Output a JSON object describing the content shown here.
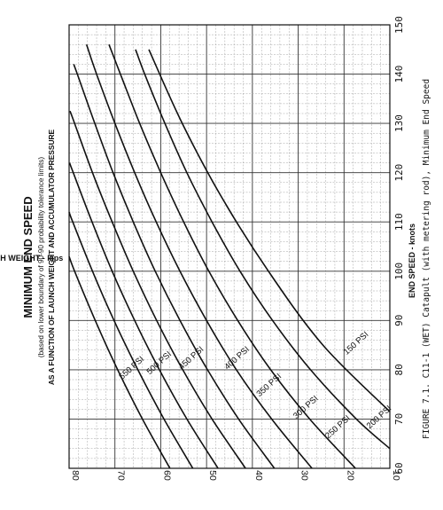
{
  "chart_data": {
    "type": "line",
    "title": "MINIMUM END SPEED",
    "subtitle_line1": "(based on lower boundary of 90-90 probability tolerance limits)",
    "subtitle_line2": "AS A FUNCTION OF LAUNCH WEIGHT AND ACCUMULATOR PRESSURE",
    "xlabel": "END SPEED - knots",
    "ylabel": "LAUNCH WEIGHT - kips",
    "caption": "FIGURE 7.1. C11-1 (WET) Catapult (with metering rod), Minimum End Speed",
    "xlim": [
      60,
      150
    ],
    "ylim": [
      10,
      80
    ],
    "x_ticks": [
      "60",
      "70",
      "80",
      "90",
      "100",
      "110",
      "120",
      "130",
      "140",
      "150"
    ],
    "y_ticks": [
      "80",
      "70",
      "60",
      "50",
      "40",
      "30",
      "20",
      "10"
    ],
    "grid": true,
    "orientation": "rotated 90° counter-clockwise on the page",
    "series": [
      {
        "name": "150 PSI",
        "points": [
          [
            71.5,
            10
          ],
          [
            85,
            24.6
          ],
          [
            100,
            36.5
          ],
          [
            115,
            46.7
          ],
          [
            130,
            55.3
          ],
          [
            145,
            62.6
          ]
        ]
      },
      {
        "name": "200 PSI",
        "points": [
          [
            64,
            10
          ],
          [
            70,
            17.3
          ],
          [
            80,
            27.3
          ],
          [
            90,
            35.6
          ],
          [
            100,
            42.7
          ],
          [
            110,
            48.8
          ],
          [
            120,
            54.3
          ],
          [
            130,
            59.1
          ],
          [
            140,
            63.5
          ],
          [
            145,
            65.5
          ]
        ]
      },
      {
        "name": "250 PSI",
        "points": [
          [
            60,
            17.5
          ],
          [
            70,
            27.5
          ],
          [
            80,
            36
          ],
          [
            90,
            43.2
          ],
          [
            100,
            49.5
          ],
          [
            110,
            55
          ],
          [
            120,
            60
          ],
          [
            130,
            64.6
          ],
          [
            140,
            68.8
          ],
          [
            146,
            71.3
          ]
        ]
      },
      {
        "name": "300 PSI",
        "points": [
          [
            60,
            27
          ],
          [
            70,
            35.8
          ],
          [
            80,
            43.5
          ],
          [
            90,
            50
          ],
          [
            100,
            55.8
          ],
          [
            110,
            61
          ],
          [
            120,
            65.7
          ],
          [
            130,
            70
          ],
          [
            140,
            74
          ],
          [
            146,
            76.2
          ]
        ]
      },
      {
        "name": "350 PSI",
        "points": [
          [
            60,
            35.2
          ],
          [
            70,
            43
          ],
          [
            80,
            49.8
          ],
          [
            90,
            55.8
          ],
          [
            100,
            61.2
          ],
          [
            110,
            66
          ],
          [
            120,
            70.4
          ],
          [
            130,
            74.4
          ],
          [
            140,
            78.2
          ],
          [
            142,
            79
          ]
        ]
      },
      {
        "name": "400 PSI",
        "points": [
          [
            60,
            41.5
          ],
          [
            70,
            48.8
          ],
          [
            80,
            55.2
          ],
          [
            90,
            60.9
          ],
          [
            100,
            66
          ],
          [
            110,
            70.6
          ],
          [
            120,
            74.9
          ],
          [
            130,
            78.8
          ],
          [
            132.5,
            79.8
          ]
        ]
      },
      {
        "name": "450 PSI",
        "points": [
          [
            60,
            47.5
          ],
          [
            70,
            54.3
          ],
          [
            80,
            60.3
          ],
          [
            90,
            65.7
          ],
          [
            100,
            70.6
          ],
          [
            110,
            75
          ],
          [
            120,
            79.1
          ],
          [
            122,
            79.9
          ]
        ]
      },
      {
        "name": "500 PSI",
        "points": [
          [
            60,
            53
          ],
          [
            70,
            59.3
          ],
          [
            80,
            65
          ],
          [
            90,
            70.2
          ],
          [
            100,
            74.9
          ],
          [
            110,
            79.2
          ],
          [
            112,
            80
          ]
        ]
      },
      {
        "name": "550 PSI",
        "points": [
          [
            60,
            58
          ],
          [
            70,
            64
          ],
          [
            80,
            69.4
          ],
          [
            90,
            74.3
          ],
          [
            100,
            78.8
          ],
          [
            103,
            80
          ]
        ]
      }
    ],
    "series_label_positions": [
      {
        "name": "150 PSI",
        "x": 85,
        "y": 17
      },
      {
        "name": "200 PSI",
        "x": 70,
        "y": 12
      },
      {
        "name": "250 PSI",
        "x": 68,
        "y": 21
      },
      {
        "name": "300 PSI",
        "x": 72,
        "y": 28
      },
      {
        "name": "350 PSI",
        "x": 76.5,
        "y": 36
      },
      {
        "name": "400 PSI",
        "x": 82,
        "y": 43
      },
      {
        "name": "450 PSI",
        "x": 82,
        "y": 53
      },
      {
        "name": "500 PSI",
        "x": 81,
        "y": 60
      },
      {
        "name": "550 PSI",
        "x": 80,
        "y": 66
      }
    ]
  }
}
